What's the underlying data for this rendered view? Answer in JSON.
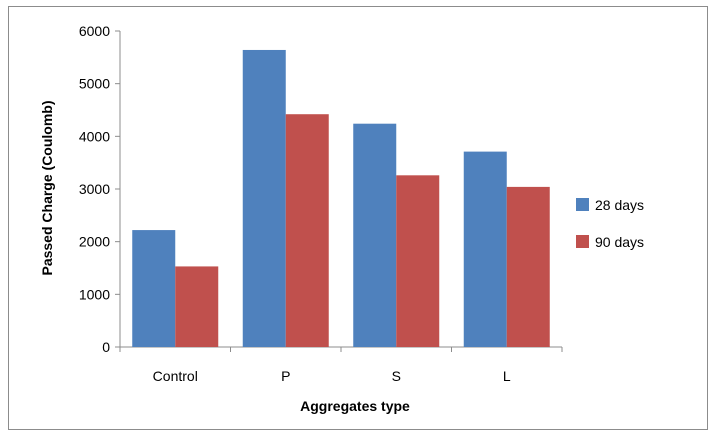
{
  "chart_data": {
    "type": "bar",
    "title": "",
    "xlabel": "Aggregates type",
    "ylabel": "Passed Charge (Coulomb)",
    "categories": [
      "Control",
      "P",
      "S",
      "L"
    ],
    "series": [
      {
        "name": "28 days",
        "values": [
          2220,
          5640,
          4240,
          3710
        ],
        "color": "#4f81bd"
      },
      {
        "name": "90 days",
        "values": [
          1530,
          4420,
          3260,
          3040
        ],
        "color": "#c0504d"
      }
    ],
    "ylim": [
      0,
      6000
    ],
    "yticks": [
      "0",
      "1000",
      "2000",
      "3000",
      "4000",
      "5000",
      "6000"
    ],
    "grid": false,
    "legend_position": "right"
  }
}
